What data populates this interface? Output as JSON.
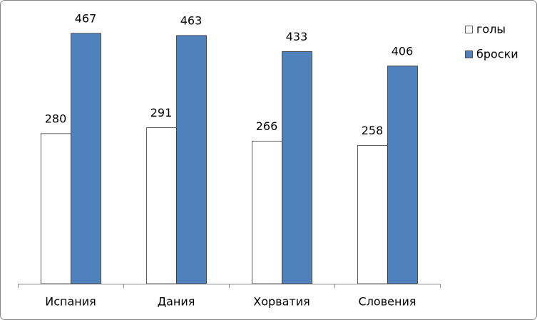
{
  "chart_data": {
    "type": "bar",
    "categories": [
      "Испания",
      "Дания",
      "Хорватия",
      "Словения"
    ],
    "series": [
      {
        "name": "голы",
        "color": "#ffffff",
        "values": [
          280,
          291,
          266,
          258
        ]
      },
      {
        "name": "броски",
        "color": "#4f81bd",
        "values": [
          467,
          463,
          433,
          406
        ]
      }
    ],
    "ylim": [
      0,
      500
    ],
    "legend": "right"
  }
}
